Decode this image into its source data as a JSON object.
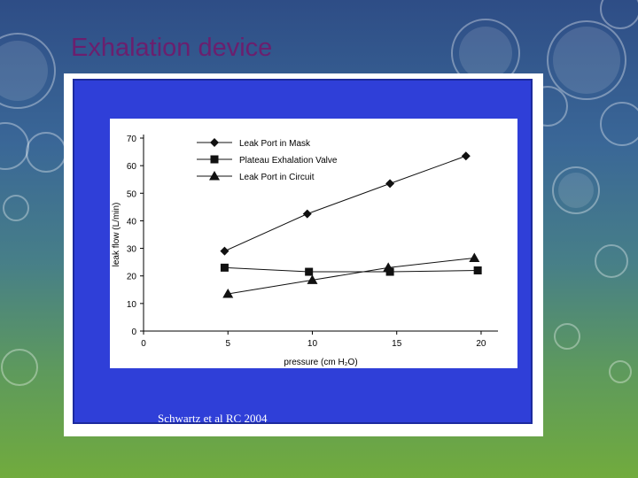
{
  "slide": {
    "title": "Exhalation device",
    "citation": "Schwartz et al RC 2004"
  },
  "colors": {
    "panel": "#2f3fd8",
    "title": "#6b1f6e",
    "series": "#111111"
  },
  "chart_data": {
    "type": "line",
    "title": "",
    "xlabel": "pressure (cm H₂O)",
    "ylabel": "leak flow (L/min)",
    "xlim": [
      0,
      21
    ],
    "ylim": [
      0,
      70
    ],
    "xticks": [
      0,
      5,
      10,
      15,
      20
    ],
    "yticks": [
      0,
      10,
      20,
      30,
      40,
      50,
      60,
      70
    ],
    "grid": false,
    "legend_position": "top-left",
    "series": [
      {
        "name": "Leak Port in Mask",
        "marker": "diamond",
        "x": [
          4.8,
          9.7,
          14.6,
          19.1
        ],
        "y": [
          29,
          42.5,
          53.5,
          63.5
        ]
      },
      {
        "name": "Plateau Exhalation Valve",
        "marker": "square",
        "x": [
          4.8,
          9.8,
          14.6,
          19.8
        ],
        "y": [
          23,
          21.5,
          21.5,
          22
        ]
      },
      {
        "name": "Leak Port in Circuit",
        "marker": "triangle",
        "x": [
          5.0,
          10.0,
          14.5,
          19.6
        ],
        "y": [
          13.5,
          18.5,
          23,
          26.5
        ]
      }
    ]
  }
}
